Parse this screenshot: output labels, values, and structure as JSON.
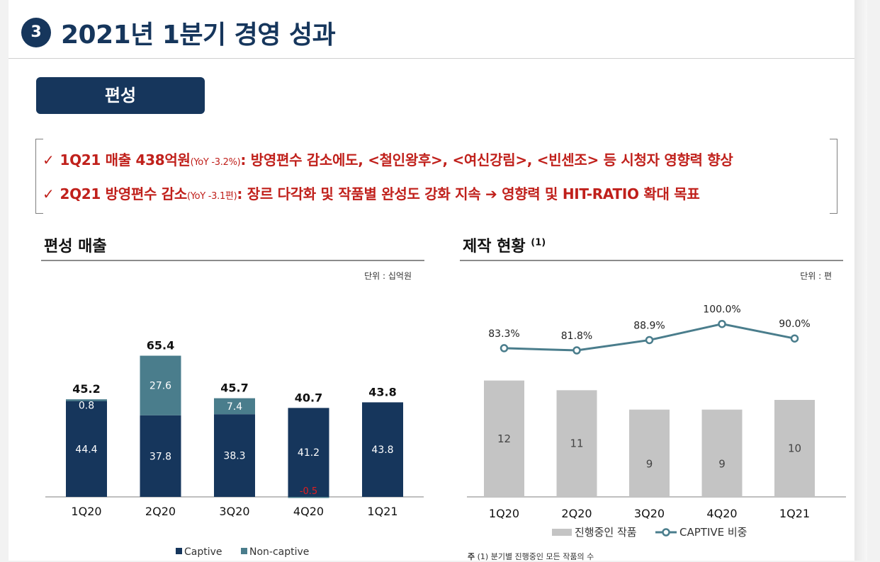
{
  "header": {
    "badge": "3",
    "title": "2021년 1분기 경영 성과"
  },
  "section": {
    "label": "편성"
  },
  "highlights": {
    "line1": {
      "check": "✓",
      "lead": "1Q21 매출 438억원",
      "note": "(YoY -3.2%)",
      "text": ": 방영편수 감소에도, <철인왕후>, <여신강림>, <빈센조> 등 시청자 영향력 향상"
    },
    "line2": {
      "check": "✓",
      "lead": "2Q21 방영편수 감소",
      "note": "(YoY -3.1편)",
      "text": ": 장르 다각화 및 작품별 완성도 강화 지속 ➔ 영향력 및 HIT-RATIO 확대 목표"
    }
  },
  "left_panel": {
    "title": "편성 매출",
    "unit": "단위 : 십억원"
  },
  "right_panel": {
    "title": "제작 현황",
    "title_sup": "(1)",
    "unit": "단위 : 편",
    "footnote_prefix": "주",
    "footnote_text": "(1) 분기별 진행중인 모든 작품의 수"
  },
  "colors": {
    "navy": "#16365c",
    "teal": "#4a7d8c",
    "gray_bar": "#c4c4c4",
    "line": "#4a7d8c",
    "negative": "#e21f1f"
  },
  "chart_data": [
    {
      "type": "bar",
      "stacked": true,
      "title": "편성 매출",
      "categories": [
        "1Q20",
        "2Q20",
        "3Q20",
        "4Q20",
        "1Q21"
      ],
      "series": [
        {
          "name": "Captive",
          "values": [
            44.4,
            37.8,
            38.3,
            41.2,
            43.8
          ],
          "labels": [
            "44.4",
            "37.8",
            "38.3",
            "41.2",
            "43.8"
          ]
        },
        {
          "name": "Non-captive",
          "values": [
            0.8,
            27.6,
            7.4,
            -0.5,
            0
          ],
          "labels": [
            "0.8",
            "27.6",
            "7.4",
            "-0.5",
            ""
          ]
        }
      ],
      "totals": [
        45.2,
        65.4,
        45.7,
        40.7,
        43.8
      ],
      "total_labels": [
        "45.2",
        "65.4",
        "45.7",
        "40.7",
        "43.8"
      ],
      "legend_position": "bottom",
      "grid": false
    },
    {
      "type": "bar",
      "title": "제작 현황",
      "categories": [
        "1Q20",
        "2Q20",
        "3Q20",
        "4Q20",
        "1Q21"
      ],
      "series": [
        {
          "name": "진행중인 작품",
          "type": "bar",
          "values": [
            12,
            11,
            9,
            9,
            10
          ],
          "labels": [
            "12",
            "11",
            "9",
            "9",
            "10"
          ]
        },
        {
          "name": "CAPTIVE 비중",
          "type": "line",
          "values": [
            83.3,
            81.8,
            88.9,
            100.0,
            90.0
          ],
          "labels": [
            "83.3%",
            "81.8%",
            "88.9%",
            "100.0%",
            "90.0%"
          ]
        }
      ],
      "legend_position": "bottom",
      "grid": false
    }
  ]
}
